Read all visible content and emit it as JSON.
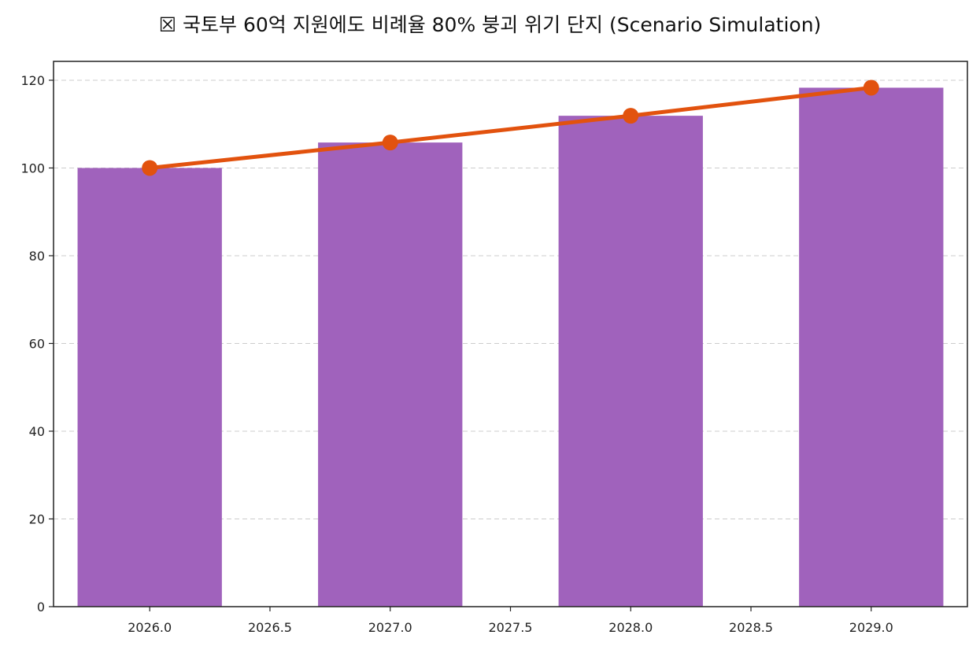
{
  "chart_data": {
    "type": "bar",
    "title": "☒ 국토부 60억 지원에도 비례율 80% 붕괴 위기 단지 (Scenario Simulation)",
    "xlabel": "",
    "ylabel": "",
    "x": [
      2026,
      2027,
      2028,
      2029
    ],
    "series": [
      {
        "kind": "bar",
        "values": [
          100,
          105.8,
          111.9,
          118.3
        ],
        "color": "#a062bc"
      },
      {
        "kind": "line",
        "values": [
          100,
          105.8,
          111.9,
          118.3
        ],
        "color": "#e2520e",
        "marker": "circle"
      }
    ],
    "bar_width_years": 0.6,
    "xlim": [
      2025.6,
      2029.4
    ],
    "ylim": [
      0,
      124.3
    ],
    "x_ticks": [
      2026.0,
      2026.5,
      2027.0,
      2027.5,
      2028.0,
      2028.5,
      2029.0
    ],
    "x_tick_labels": [
      "2026.0",
      "2026.5",
      "2027.0",
      "2027.5",
      "2028.0",
      "2028.5",
      "2029.0"
    ],
    "y_ticks": [
      0,
      20,
      40,
      60,
      80,
      100,
      120
    ],
    "y_tick_labels": [
      "0",
      "20",
      "40",
      "60",
      "80",
      "100",
      "120"
    ],
    "grid": "y-dashed",
    "legend": "none"
  }
}
